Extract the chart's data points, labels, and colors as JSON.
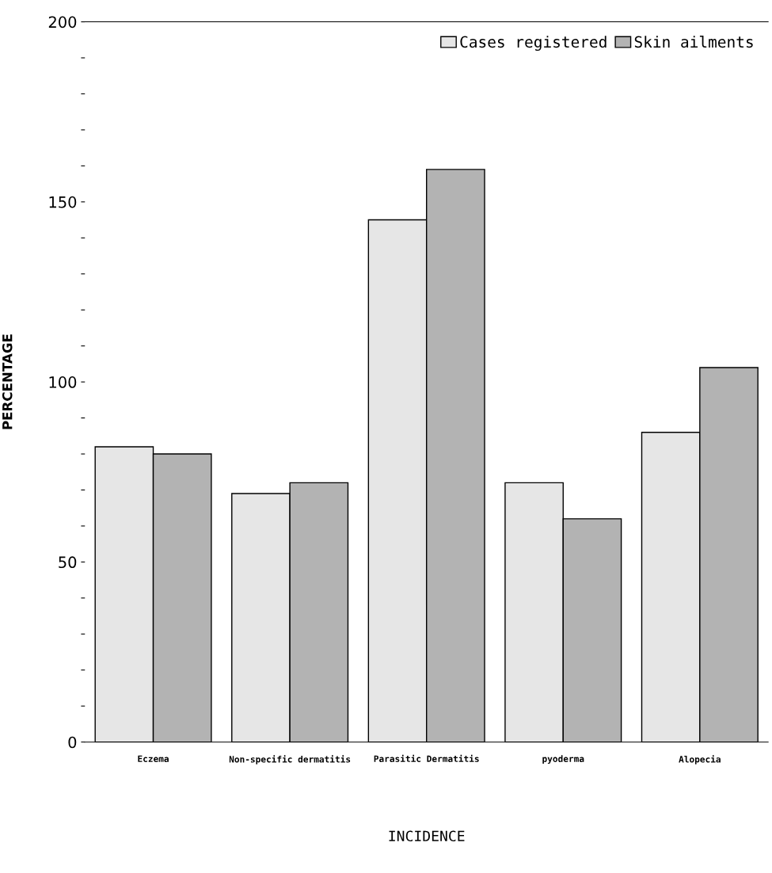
{
  "chart_data": {
    "type": "bar",
    "xlabel": "INCIDENCE",
    "ylabel": "PERCENTAGE",
    "categories": [
      "Eczema",
      "Non-specific dermatitis",
      "Parasitic Dermatitis",
      "pyoderma",
      "Alopecia"
    ],
    "series": [
      {
        "name": "Cases registered",
        "color": "#e6e6e6",
        "values": [
          82,
          69,
          145,
          72,
          86
        ]
      },
      {
        "name": "Skin ailments",
        "color": "#b3b3b3",
        "values": [
          80,
          72,
          159,
          62,
          104
        ]
      }
    ],
    "ylim": [
      0,
      200
    ],
    "yticks": [
      0,
      {
        "value": 10,
        "label": null
      },
      {
        "value": 20,
        "label": null
      },
      {
        "value": 30,
        "label": null
      },
      {
        "value": 40,
        "label": null
      },
      50,
      {
        "value": 60,
        "label": null
      },
      {
        "value": 70,
        "label": null
      },
      {
        "value": 80,
        "label": null
      },
      {
        "value": 90,
        "label": null
      },
      100,
      {
        "value": 110,
        "label": null
      },
      {
        "value": 120,
        "label": null
      },
      {
        "value": 130,
        "label": null
      },
      {
        "value": 140,
        "label": null
      },
      150,
      {
        "value": 160,
        "label": null
      },
      {
        "value": 170,
        "label": null
      },
      {
        "value": 180,
        "label": null
      },
      {
        "value": 190,
        "label": null
      },
      200
    ],
    "grid": false,
    "legend": "top right"
  }
}
